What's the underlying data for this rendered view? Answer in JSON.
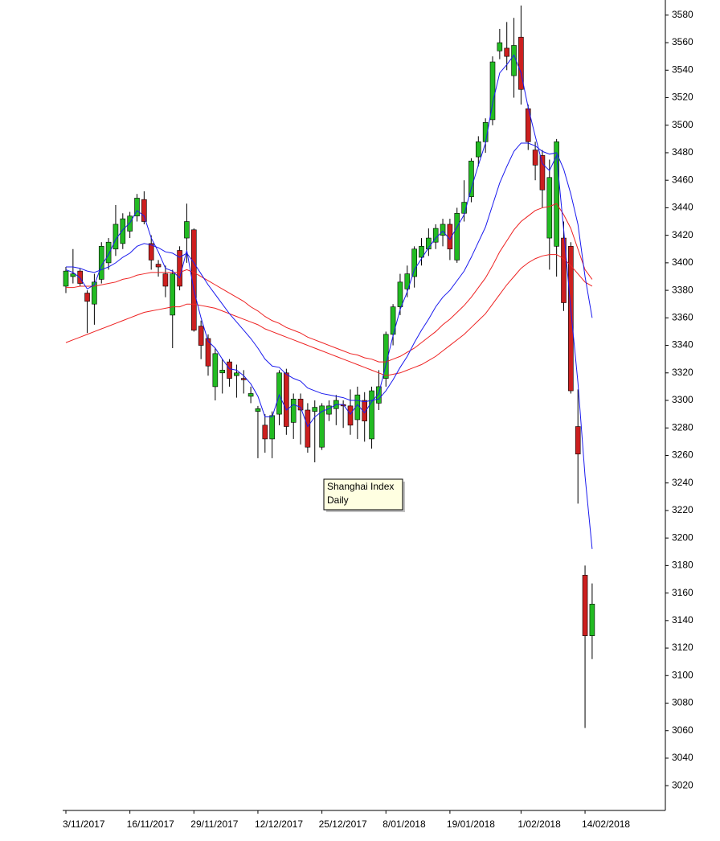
{
  "chart_data": {
    "type": "candlestick",
    "annotation": [
      "Shanghai Index",
      "Daily"
    ],
    "categories": [
      "3/11/2017",
      null,
      null,
      null,
      null,
      null,
      null,
      null,
      null,
      "16/11/2017",
      null,
      null,
      null,
      null,
      null,
      null,
      null,
      null,
      "29/11/2017",
      null,
      null,
      null,
      null,
      null,
      null,
      null,
      null,
      "12/12/2017",
      null,
      null,
      null,
      null,
      null,
      null,
      null,
      null,
      "25/12/2017",
      null,
      null,
      null,
      null,
      null,
      null,
      null,
      null,
      "8/01/2018",
      null,
      null,
      null,
      null,
      null,
      null,
      null,
      null,
      "19/01/2018",
      null,
      null,
      null,
      null,
      null,
      null,
      null,
      null,
      null,
      "1/02/2018",
      null,
      null,
      null,
      null,
      null,
      null,
      null,
      null,
      "14/02/2018",
      null
    ],
    "open": [
      3383,
      3390,
      3394,
      3378,
      3370,
      3388,
      3400,
      3410,
      3414,
      3423,
      3434,
      3446,
      3414,
      3399,
      3392,
      3362,
      3409,
      3418,
      3424,
      3354,
      3345,
      3310,
      3320,
      3328,
      3318,
      3316,
      3303,
      3292,
      3282,
      3272,
      3290,
      3320,
      3284,
      3301,
      3293,
      3292,
      3266,
      3290,
      3294,
      3297,
      3296,
      3286,
      3300,
      3272,
      3298,
      3316,
      3348,
      3368,
      3381,
      3390,
      3404,
      3410,
      3415,
      3420,
      3428,
      3402,
      3436,
      3448,
      3477,
      3488,
      3504,
      3554,
      3556,
      3536,
      3564,
      3512,
      3482,
      3478,
      3418,
      3412,
      3418,
      3412,
      3281,
      3173,
      3129
    ],
    "high": [
      3397,
      3410,
      3396,
      3380,
      3392,
      3415,
      3418,
      3442,
      3436,
      3437,
      3450,
      3452,
      3420,
      3402,
      3398,
      3395,
      3412,
      3443,
      3425,
      3358,
      3348,
      3338,
      3330,
      3330,
      3326,
      3322,
      3310,
      3296,
      3290,
      3292,
      3322,
      3323,
      3305,
      3305,
      3298,
      3300,
      3298,
      3300,
      3304,
      3300,
      3308,
      3310,
      3306,
      3310,
      3322,
      3350,
      3370,
      3392,
      3398,
      3412,
      3418,
      3425,
      3428,
      3432,
      3432,
      3440,
      3460,
      3476,
      3492,
      3505,
      3550,
      3570,
      3575,
      3578,
      3587,
      3515,
      3488,
      3482,
      3475,
      3490,
      3430,
      3415,
      3308,
      3180,
      3167
    ],
    "low": [
      3378,
      3385,
      3383,
      3349,
      3355,
      3385,
      3395,
      3405,
      3410,
      3418,
      3430,
      3428,
      3395,
      3390,
      3375,
      3338,
      3380,
      3400,
      3350,
      3330,
      3318,
      3300,
      3305,
      3310,
      3302,
      3305,
      3298,
      3258,
      3262,
      3258,
      3282,
      3275,
      3272,
      3268,
      3262,
      3255,
      3264,
      3285,
      3282,
      3280,
      3275,
      3272,
      3270,
      3265,
      3293,
      3310,
      3340,
      3362,
      3375,
      3382,
      3398,
      3405,
      3410,
      3412,
      3402,
      3400,
      3430,
      3444,
      3470,
      3480,
      3500,
      3548,
      3540,
      3520,
      3515,
      3482,
      3460,
      3440,
      3395,
      3390,
      3365,
      3305,
      3225,
      3062,
      3112
    ],
    "close": [
      3394,
      3392,
      3385,
      3372,
      3386,
      3412,
      3415,
      3428,
      3432,
      3434,
      3447,
      3430,
      3402,
      3397,
      3383,
      3392,
      3383,
      3430,
      3351,
      3340,
      3325,
      3334,
      3322,
      3316,
      3320,
      3315,
      3305,
      3294,
      3272,
      3289,
      3320,
      3281,
      3301,
      3293,
      3266,
      3295,
      3296,
      3296,
      3300,
      3296,
      3282,
      3304,
      3285,
      3307,
      3310,
      3348,
      3368,
      3386,
      3392,
      3410,
      3412,
      3418,
      3425,
      3428,
      3410,
      3436,
      3444,
      3474,
      3488,
      3502,
      3546,
      3560,
      3550,
      3558,
      3526,
      3488,
      3471,
      3453,
      3462,
      3488,
      3371,
      3307,
      3261,
      3129,
      3152
    ],
    "up_color": "#22bb22",
    "down_color": "#cc1f1f",
    "overlays": [
      {
        "color": "#ee2222",
        "values": [
          3342,
          3344,
          3346,
          3348,
          3350,
          3352,
          3354,
          3356,
          3358,
          3360,
          3362,
          3364,
          3365,
          3366,
          3367,
          3368,
          3368,
          3370,
          3370,
          3369,
          3368,
          3367,
          3365,
          3363,
          3361,
          3359,
          3357,
          3355,
          3352,
          3350,
          3348,
          3346,
          3344,
          3342,
          3340,
          3338,
          3336,
          3334,
          3332,
          3330,
          3328,
          3326,
          3324,
          3322,
          3320,
          3318,
          3319,
          3320,
          3322,
          3324,
          3326,
          3329,
          3332,
          3336,
          3340,
          3344,
          3348,
          3353,
          3358,
          3363,
          3370,
          3377,
          3384,
          3390,
          3396,
          3400,
          3403,
          3405,
          3406,
          3406,
          3403,
          3398,
          3392,
          3386,
          3383
        ]
      },
      {
        "color": "#ee2222",
        "values": [
          3382,
          3382,
          3383,
          3383,
          3383,
          3384,
          3385,
          3386,
          3388,
          3389,
          3391,
          3392,
          3393,
          3393,
          3393,
          3393,
          3393,
          3395,
          3393,
          3390,
          3387,
          3384,
          3381,
          3378,
          3375,
          3372,
          3368,
          3365,
          3361,
          3358,
          3356,
          3353,
          3351,
          3349,
          3346,
          3344,
          3342,
          3340,
          3338,
          3336,
          3334,
          3333,
          3331,
          3330,
          3328,
          3328,
          3330,
          3332,
          3335,
          3338,
          3342,
          3346,
          3350,
          3355,
          3359,
          3364,
          3369,
          3375,
          3382,
          3389,
          3398,
          3408,
          3416,
          3424,
          3430,
          3434,
          3438,
          3440,
          3441,
          3443,
          3435,
          3425,
          3410,
          3395,
          3388
        ]
      },
      {
        "color": "#1a1aee",
        "values": [
          3397,
          3397,
          3396,
          3394,
          3393,
          3395,
          3397,
          3400,
          3404,
          3407,
          3412,
          3414,
          3413,
          3411,
          3408,
          3407,
          3404,
          3407,
          3400,
          3392,
          3384,
          3377,
          3370,
          3363,
          3357,
          3351,
          3345,
          3338,
          3330,
          3325,
          3324,
          3319,
          3316,
          3314,
          3309,
          3307,
          3305,
          3304,
          3303,
          3302,
          3300,
          3300,
          3299,
          3300,
          3301,
          3307,
          3315,
          3324,
          3332,
          3342,
          3351,
          3359,
          3368,
          3375,
          3380,
          3387,
          3394,
          3404,
          3415,
          3426,
          3442,
          3458,
          3470,
          3481,
          3487,
          3487,
          3485,
          3481,
          3479,
          3480,
          3468,
          3450,
          3428,
          3390,
          3360
        ]
      },
      {
        "color": "#1a1aee",
        "values": [
          3395,
          3393,
          3389,
          3381,
          3384,
          3398,
          3406,
          3417,
          3424,
          3429,
          3438,
          3434,
          3418,
          3408,
          3396,
          3394,
          3389,
          3409,
          3380,
          3360,
          3343,
          3338,
          3330,
          3323,
          3322,
          3318,
          3312,
          3303,
          3288,
          3288,
          3304,
          3293,
          3297,
          3295,
          3281,
          3288,
          3292,
          3294,
          3297,
          3297,
          3290,
          3297,
          3291,
          3299,
          3305,
          3326,
          3347,
          3366,
          3379,
          3395,
          3403,
          3411,
          3418,
          3423,
          3417,
          3426,
          3435,
          3454,
          3471,
          3487,
          3516,
          3538,
          3544,
          3551,
          3538,
          3513,
          3492,
          3472,
          3467,
          3478,
          3424,
          3366,
          3313,
          3245,
          3192
        ]
      }
    ],
    "ylim": [
      3002,
      3591
    ],
    "yticks": [
      3020,
      3040,
      3060,
      3080,
      3100,
      3120,
      3140,
      3160,
      3180,
      3200,
      3220,
      3240,
      3260,
      3280,
      3300,
      3320,
      3340,
      3360,
      3380,
      3400,
      3420,
      3440,
      3460,
      3480,
      3500,
      3520,
      3540,
      3560,
      3580
    ],
    "y_axis_side": "right",
    "grid": false
  }
}
